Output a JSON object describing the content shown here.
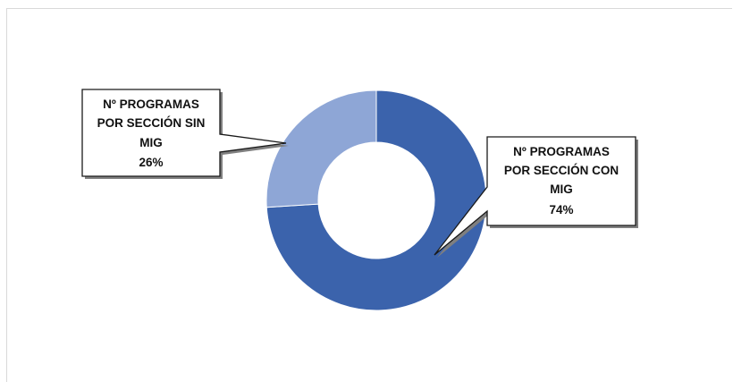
{
  "chart_data": {
    "type": "pie",
    "subtype": "donut",
    "slices": [
      {
        "label_lines": [
          "Nº PROGRAMAS",
          "POR SECCIÓN CON",
          "MIG"
        ],
        "percent_label": "74%",
        "value": 74,
        "color": "#3b63ac"
      },
      {
        "label_lines": [
          "Nº PROGRAMAS",
          "POR SECCIÓN SIN",
          "MIG"
        ],
        "percent_label": "26%",
        "value": 26,
        "color": "#8ea6d6"
      }
    ],
    "legend": "none",
    "title": ""
  }
}
